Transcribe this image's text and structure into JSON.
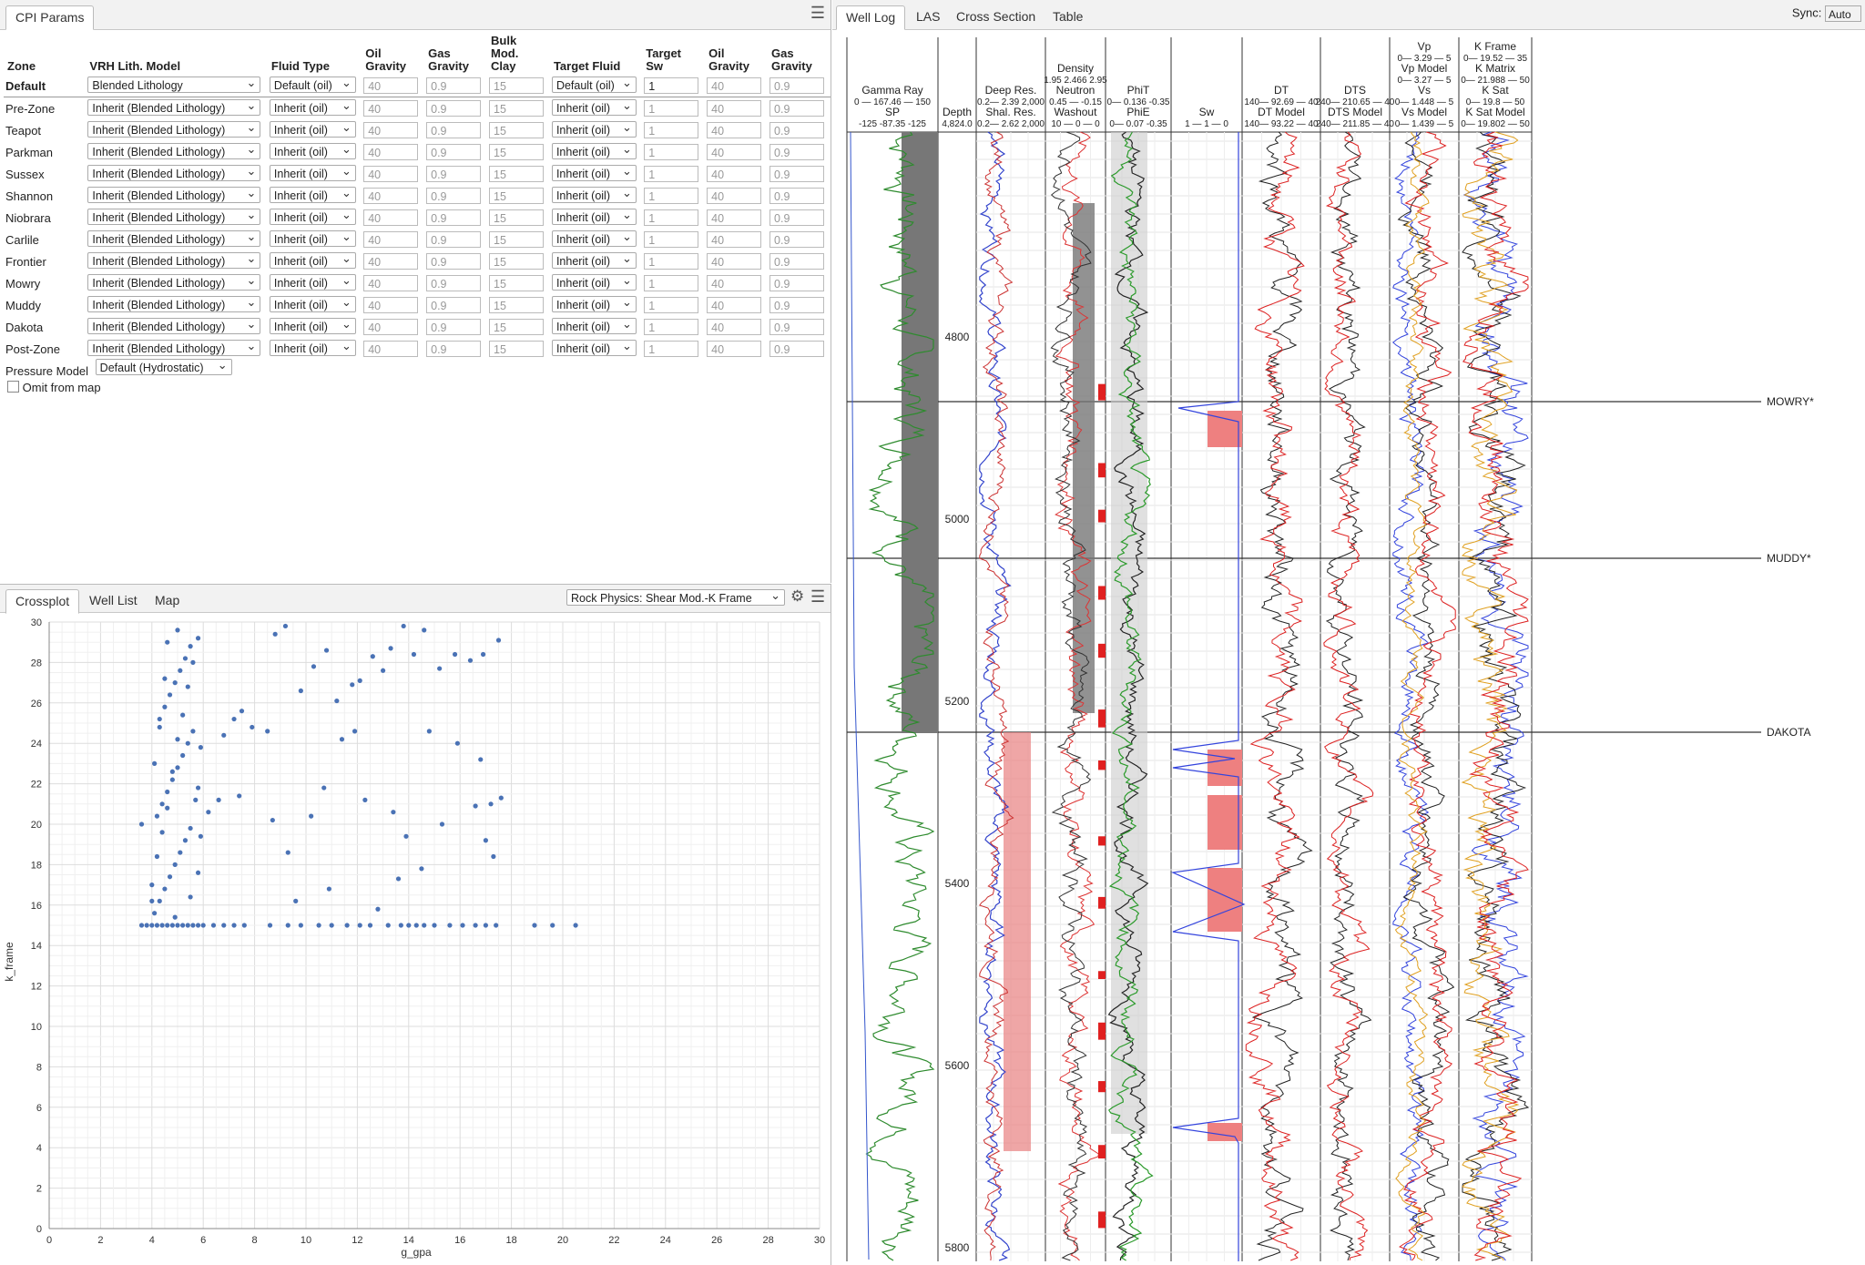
{
  "cpi": {
    "tab": "CPI Params",
    "headers": [
      "Zone",
      "VRH Lith. Model",
      "Fluid Type",
      "Oil Gravity",
      "Gas Gravity",
      "Bulk Mod. Clay",
      "Target Fluid",
      "Target Sw",
      "Oil Gravity",
      "Gas Gravity"
    ],
    "default_row": {
      "zone": "Default",
      "lith": "Blended Lithology",
      "fluid": "Default (oil)",
      "oil": "40",
      "gas": "0.9",
      "clay": "15",
      "target": "Default (oil)",
      "sw": "1",
      "oil2": "40",
      "gas2": "0.9"
    },
    "zones": [
      "Pre-Zone",
      "Teapot",
      "Parkman",
      "Sussex",
      "Shannon",
      "Niobrara",
      "Carlile",
      "Frontier",
      "Mowry",
      "Muddy",
      "Dakota",
      "Post-Zone"
    ],
    "inherit_lith": "Inherit (Blended Lithology)",
    "inherit_fluid": "Inherit (oil)",
    "vals": {
      "oil": "40",
      "gas": "0.9",
      "clay": "15",
      "sw": "1"
    },
    "pressure_label": "Pressure Model",
    "pressure_value": "Default (Hydrostatic)",
    "omit_label": "Omit from map"
  },
  "crossplot": {
    "tabs": [
      "Crossplot",
      "Well List",
      "Map"
    ],
    "selector": "Rock Physics: Shear Mod.-K Frame",
    "xlabel": "g_gpa",
    "ylabel": "k_frame",
    "xticks": [
      "0",
      "2",
      "4",
      "6",
      "8",
      "10",
      "12",
      "14",
      "16",
      "18",
      "20",
      "22",
      "24",
      "26",
      "28",
      "30"
    ],
    "yticks": [
      "0",
      "2",
      "4",
      "6",
      "8",
      "10",
      "12",
      "14",
      "16",
      "18",
      "20",
      "22",
      "24",
      "26",
      "28",
      "30"
    ]
  },
  "chart_data": {
    "type": "scatter",
    "xlabel": "g_gpa",
    "ylabel": "k_frame",
    "xlim": [
      0,
      30
    ],
    "ylim": [
      0,
      30
    ],
    "grid": true,
    "series": [
      {
        "color": "#4a72b5",
        "points": [
          [
            3.6,
            15
          ],
          [
            3.8,
            15
          ],
          [
            4.0,
            15
          ],
          [
            4.2,
            15
          ],
          [
            4.4,
            15
          ],
          [
            4.6,
            15
          ],
          [
            4.8,
            15
          ],
          [
            5.0,
            15
          ],
          [
            5.2,
            15
          ],
          [
            5.4,
            15
          ],
          [
            5.6,
            15
          ],
          [
            5.8,
            15
          ],
          [
            6.0,
            15
          ],
          [
            6.4,
            15
          ],
          [
            6.8,
            15
          ],
          [
            7.2,
            15
          ],
          [
            7.6,
            15
          ],
          [
            8.6,
            15
          ],
          [
            9.3,
            15
          ],
          [
            9.8,
            15
          ],
          [
            10.5,
            15
          ],
          [
            11.0,
            15
          ],
          [
            11.6,
            15
          ],
          [
            12.1,
            15
          ],
          [
            12.5,
            15
          ],
          [
            13.2,
            15
          ],
          [
            13.7,
            15
          ],
          [
            14.0,
            15
          ],
          [
            14.3,
            15
          ],
          [
            14.6,
            15
          ],
          [
            15.0,
            15
          ],
          [
            15.6,
            15
          ],
          [
            16.1,
            15
          ],
          [
            16.6,
            15
          ],
          [
            17.0,
            15
          ],
          [
            17.4,
            15
          ],
          [
            18.9,
            15
          ],
          [
            19.6,
            15
          ],
          [
            20.5,
            15
          ],
          [
            4.1,
            15.6
          ],
          [
            4.3,
            16.2
          ],
          [
            4.5,
            16.8
          ],
          [
            4.7,
            17.4
          ],
          [
            4.9,
            18.0
          ],
          [
            5.1,
            18.6
          ],
          [
            5.3,
            19.2
          ],
          [
            5.5,
            19.8
          ],
          [
            4.2,
            20.4
          ],
          [
            4.4,
            21.0
          ],
          [
            4.6,
            21.6
          ],
          [
            4.8,
            22.2
          ],
          [
            5.0,
            22.8
          ],
          [
            5.2,
            23.4
          ],
          [
            5.4,
            24.0
          ],
          [
            5.6,
            24.6
          ],
          [
            4.3,
            25.2
          ],
          [
            4.5,
            25.8
          ],
          [
            4.7,
            26.4
          ],
          [
            4.9,
            27.0
          ],
          [
            5.1,
            27.6
          ],
          [
            5.3,
            28.2
          ],
          [
            5.5,
            28.8
          ],
          [
            5.0,
            29.6
          ],
          [
            4.6,
            29.0
          ],
          [
            4.0,
            17.0
          ],
          [
            4.2,
            18.4
          ],
          [
            4.4,
            19.6
          ],
          [
            4.6,
            20.8
          ],
          [
            4.8,
            22.6
          ],
          [
            5.0,
            24.2
          ],
          [
            5.2,
            25.4
          ],
          [
            5.4,
            26.8
          ],
          [
            5.6,
            28.0
          ],
          [
            5.8,
            29.2
          ],
          [
            4.1,
            23.0
          ],
          [
            4.3,
            24.8
          ],
          [
            4.5,
            27.2
          ],
          [
            5.7,
            21.2
          ],
          [
            5.9,
            19.4
          ],
          [
            5.8,
            17.6
          ],
          [
            4.0,
            16.2
          ],
          [
            5.9,
            23.8
          ],
          [
            5.5,
            16.4
          ],
          [
            4.9,
            15.4
          ],
          [
            3.6,
            20.0
          ],
          [
            5.8,
            21.8
          ],
          [
            6.2,
            20.6
          ],
          [
            6.6,
            21.2
          ],
          [
            7.4,
            21.4
          ],
          [
            6.8,
            24.4
          ],
          [
            7.2,
            25.2
          ],
          [
            7.5,
            25.6
          ],
          [
            7.9,
            24.8
          ],
          [
            8.5,
            24.6
          ],
          [
            8.8,
            29.4
          ],
          [
            9.2,
            29.8
          ],
          [
            9.8,
            26.6
          ],
          [
            10.3,
            27.8
          ],
          [
            10.8,
            28.6
          ],
          [
            11.2,
            26.1
          ],
          [
            11.8,
            26.9
          ],
          [
            12.1,
            27.1
          ],
          [
            12.6,
            28.3
          ],
          [
            13.0,
            27.6
          ],
          [
            13.3,
            28.7
          ],
          [
            13.8,
            29.8
          ],
          [
            14.2,
            28.4
          ],
          [
            14.6,
            29.6
          ],
          [
            15.2,
            27.7
          ],
          [
            15.8,
            28.4
          ],
          [
            16.4,
            28.1
          ],
          [
            16.9,
            28.4
          ],
          [
            17.5,
            29.1
          ],
          [
            8.7,
            20.2
          ],
          [
            9.3,
            18.6
          ],
          [
            10.2,
            20.4
          ],
          [
            10.7,
            21.8
          ],
          [
            11.4,
            24.2
          ],
          [
            11.9,
            24.6
          ],
          [
            12.3,
            21.2
          ],
          [
            13.4,
            20.6
          ],
          [
            13.9,
            19.4
          ],
          [
            14.5,
            17.8
          ],
          [
            15.3,
            20.0
          ],
          [
            16.6,
            20.9
          ],
          [
            17.2,
            21.0
          ],
          [
            17.6,
            21.3
          ],
          [
            16.8,
            23.2
          ],
          [
            15.9,
            24.0
          ],
          [
            14.8,
            24.6
          ],
          [
            9.6,
            16.2
          ],
          [
            10.9,
            16.8
          ],
          [
            12.8,
            15.8
          ],
          [
            13.6,
            17.3
          ],
          [
            17.0,
            19.2
          ],
          [
            17.3,
            18.4
          ]
        ]
      }
    ]
  },
  "welllog": {
    "tabs": [
      "Well Log",
      "LAS",
      "Cross Section",
      "Table"
    ],
    "sync_label": "Sync:",
    "sync_value": "Auto",
    "tracks": [
      {
        "name": "gr",
        "lines": [
          "Gamma Ray",
          "0 — 167.46 — 150",
          "SP",
          "-125 -87.35 -125"
        ]
      },
      {
        "name": "depth",
        "lines": [
          "",
          "",
          "Depth",
          "4,824.0"
        ]
      },
      {
        "name": "res",
        "lines": [
          "Deep Res.",
          "0.2— 2.39 2,000",
          "Shal. Res.",
          "0.2— 2.62 2,000"
        ]
      },
      {
        "name": "dens",
        "lines": [
          "Density",
          "1.95 2.466 2.95",
          "Neutron",
          "0.45 — -0.15",
          "Washout",
          "10 — 0 — 0"
        ]
      },
      {
        "name": "phi",
        "lines": [
          "PhiT",
          "0— 0.136 -0.35",
          "PhiE",
          "0— 0.07 -0.35"
        ]
      },
      {
        "name": "sw",
        "lines": [
          "",
          "",
          "Sw",
          "1 — 1 — 0"
        ]
      },
      {
        "name": "dt",
        "lines": [
          "DT",
          "140— 92.69 — 40",
          "DT Model",
          "140— 93.22 — 40"
        ]
      },
      {
        "name": "dts",
        "lines": [
          "DTS",
          "240— 210.65 — 40",
          "DTS Model",
          "240— 211.85 — 40"
        ]
      },
      {
        "name": "vp",
        "lines": [
          "Vp",
          "0— 3.29 — 5",
          "Vp Model",
          "0— 3.27 — 5",
          "Vs",
          "0— 1.448 — 5",
          "Vs Model",
          "0— 1.439 — 5"
        ]
      },
      {
        "name": "k",
        "lines": [
          "K Frame",
          "0— 19.52 — 35",
          "K Matrix",
          "0— 21.988 — 50",
          "K Sat",
          "0— 19.8 — 50",
          "K Sat Model",
          "0— 19.802 — 50"
        ]
      }
    ],
    "depth_labels": [
      "4800",
      "5000",
      "5200",
      "5400",
      "5600",
      "5800"
    ],
    "tops": [
      "MOWRY*",
      "MUDDY*",
      "DAKOTA"
    ]
  }
}
